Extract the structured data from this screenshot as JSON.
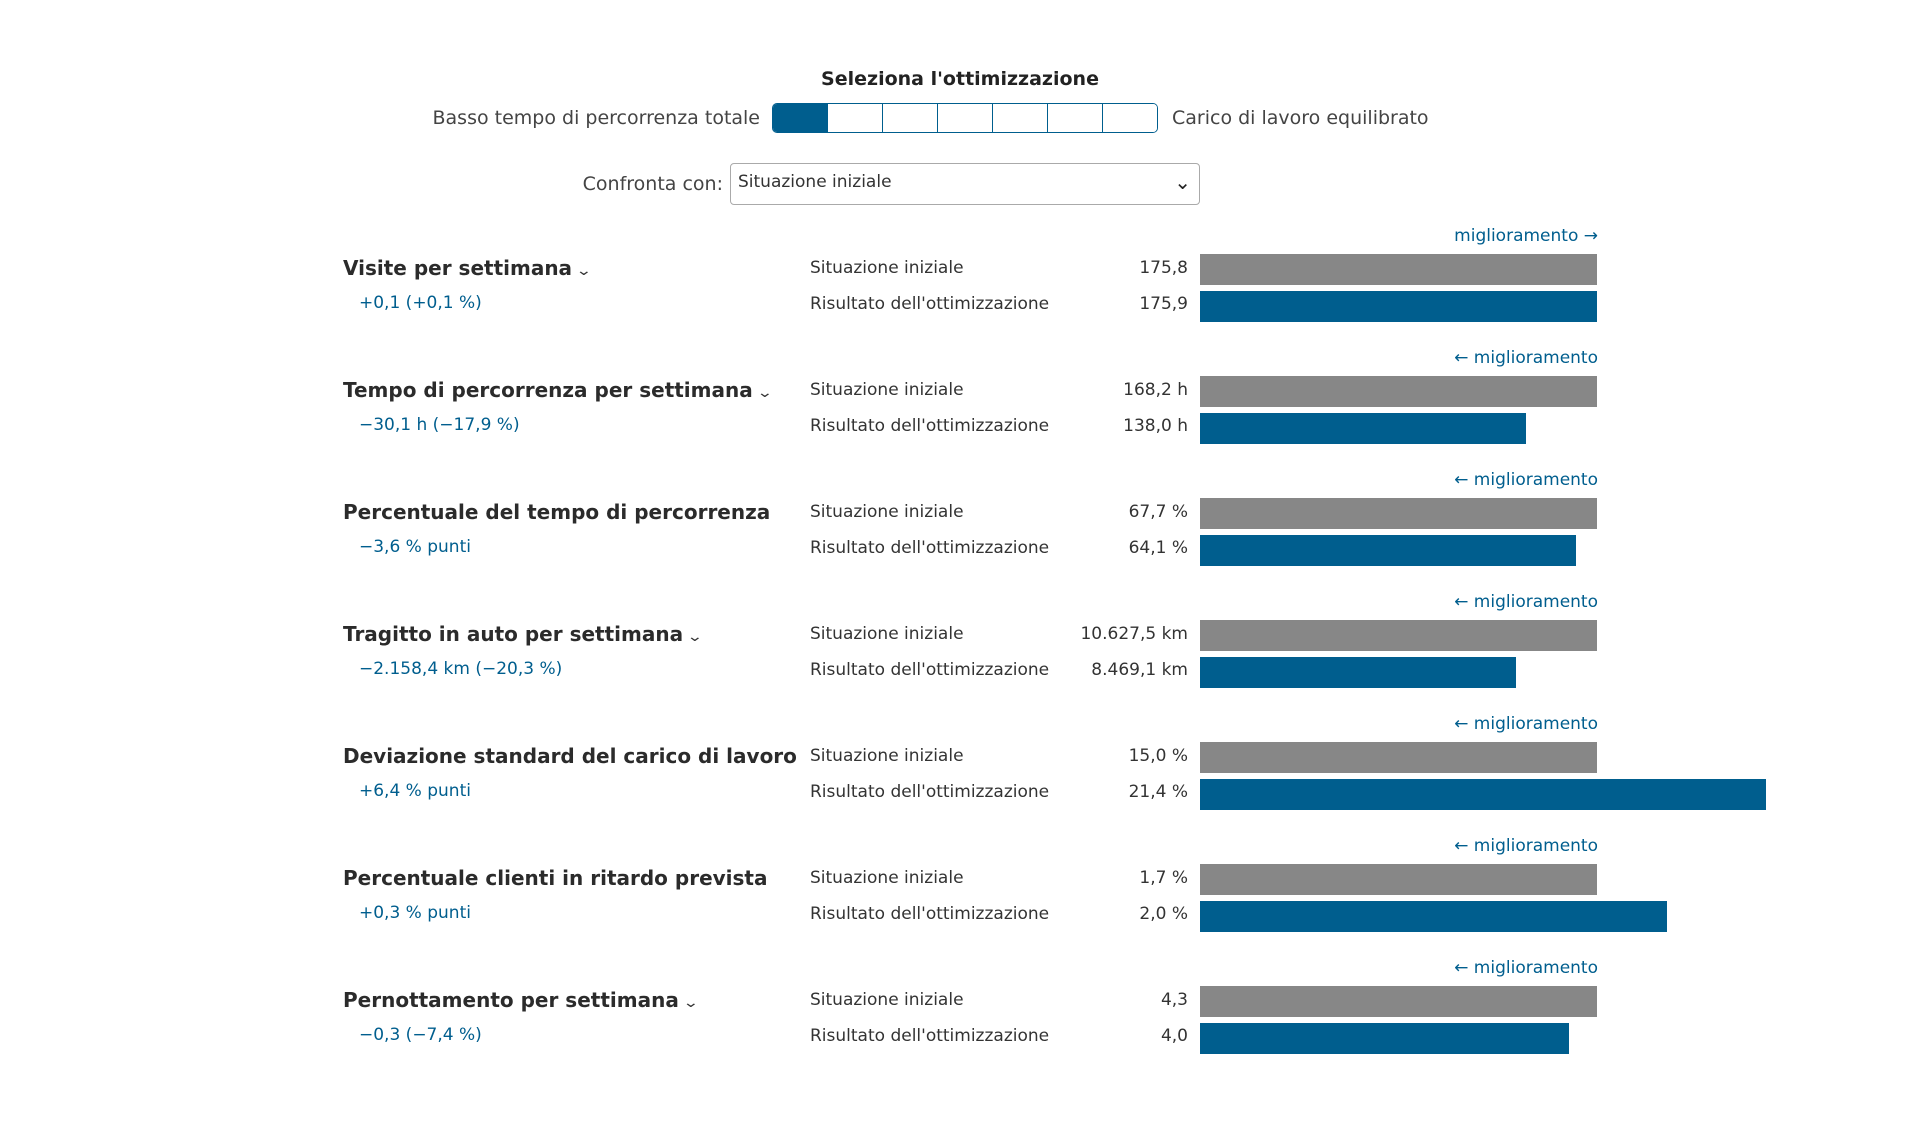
{
  "optimization": {
    "title": "Seleziona l'ottimizzazione",
    "left_label": "Basso tempo di percorrenza totale",
    "right_label": "Carico di lavoro equilibrato",
    "segments": 7,
    "selected_segment": 1
  },
  "compare": {
    "label": "Confronta con:",
    "selected": "Situazione iniziale"
  },
  "colors": {
    "baseline": "#878787",
    "result": "#005e8e",
    "accent": "#005e8e"
  },
  "bar_scale_max": 1.427,
  "metrics": [
    {
      "title": "Visite per settimana",
      "has_dropdown": true,
      "improvement": "miglioramento →",
      "delta": "+0,1 (+0,1 %)",
      "row1_label": "Situazione iniziale",
      "row2_label": "Risultato dell'ottimizzazione",
      "baseline_text": "175,8",
      "result_text": "175,9",
      "baseline": 175.8,
      "result": 175.9
    },
    {
      "title": "Tempo di percorrenza per settimana",
      "has_dropdown": true,
      "improvement": "← miglioramento",
      "delta": "−30,1 h (−17,9 %)",
      "row1_label": "Situazione iniziale",
      "row2_label": "Risultato dell'ottimizzazione",
      "baseline_text": "168,2 h",
      "result_text": "138,0 h",
      "baseline": 168.2,
      "result": 138.0
    },
    {
      "title": "Percentuale del tempo di percorrenza",
      "has_dropdown": false,
      "improvement": "← miglioramento",
      "delta": "−3,6 % punti",
      "row1_label": "Situazione iniziale",
      "row2_label": "Risultato dell'ottimizzazione",
      "baseline_text": "67,7 %",
      "result_text": "64,1 %",
      "baseline": 67.7,
      "result": 64.1
    },
    {
      "title": "Tragitto in auto per settimana",
      "has_dropdown": true,
      "improvement": "← miglioramento",
      "delta": "−2.158,4 km (−20,3 %)",
      "row1_label": "Situazione iniziale",
      "row2_label": "Risultato dell'ottimizzazione",
      "baseline_text": "10.627,5 km",
      "result_text": "8.469,1 km",
      "baseline": 10627.5,
      "result": 8469.1
    },
    {
      "title": "Deviazione standard del carico di lavoro",
      "has_dropdown": false,
      "improvement": "← miglioramento",
      "delta": "+6,4 % punti",
      "row1_label": "Situazione iniziale",
      "row2_label": "Risultato dell'ottimizzazione",
      "baseline_text": "15,0 %",
      "result_text": "21,4 %",
      "baseline": 15.0,
      "result": 21.4
    },
    {
      "title": "Percentuale clienti in ritardo prevista",
      "has_dropdown": false,
      "improvement": "← miglioramento",
      "delta": "+0,3 % punti",
      "row1_label": "Situazione iniziale",
      "row2_label": "Risultato dell'ottimizzazione",
      "baseline_text": "1,7 %",
      "result_text": "2,0 %",
      "baseline": 1.7,
      "result": 2.0
    },
    {
      "title": "Pernottamento per settimana",
      "has_dropdown": true,
      "improvement": "← miglioramento",
      "delta": "−0,3 (−7,4 %)",
      "row1_label": "Situazione iniziale",
      "row2_label": "Risultato dell'ottimizzazione",
      "baseline_text": "4,3",
      "result_text": "4,0",
      "baseline": 4.3,
      "result": 4.0
    }
  ]
}
